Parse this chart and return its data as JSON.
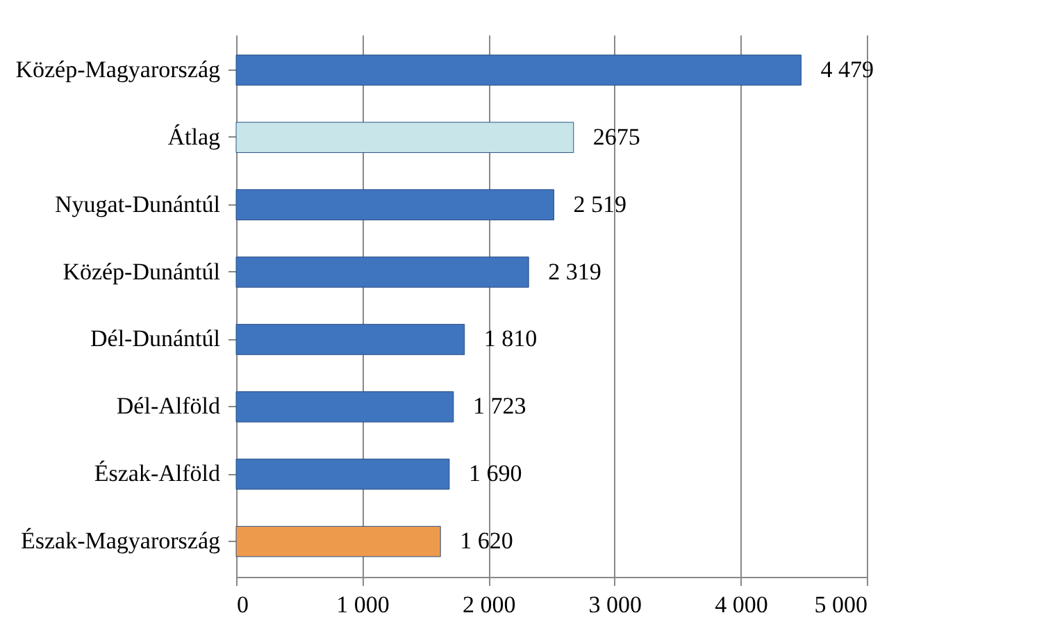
{
  "chart_data": {
    "type": "bar",
    "orientation": "horizontal",
    "categories": [
      "Közép-Magyarország",
      "Átlag",
      "Nyugat-Dunántúl",
      "Közép-Dunántúl",
      "Dél-Dunántúl",
      "Dél-Alföld",
      "Észak-Alföld",
      "Észak-Magyarország"
    ],
    "values": [
      4479,
      2675,
      2519,
      2319,
      1810,
      1723,
      1690,
      1620
    ],
    "value_labels": [
      "4 479",
      "2675",
      "2 519",
      "2 319",
      "1 810",
      "1 723",
      "1 690",
      "1 620"
    ],
    "colors": [
      "#3f74bf",
      "#c8e6ea",
      "#3f74bf",
      "#3f74bf",
      "#3f74bf",
      "#3f74bf",
      "#3f74bf",
      "#ee9a4d"
    ],
    "xlim": [
      0,
      5000
    ],
    "xticks": [
      0,
      {
        "value": 1000,
        "label": "1 000"
      },
      {
        "value": 2000,
        "label": "2 000"
      },
      {
        "value": 3000,
        "label": "3 000"
      },
      {
        "value": 4000,
        "label": "4 000"
      },
      {
        "value": 5000,
        "label": "5 000"
      }
    ],
    "grid": "x"
  }
}
